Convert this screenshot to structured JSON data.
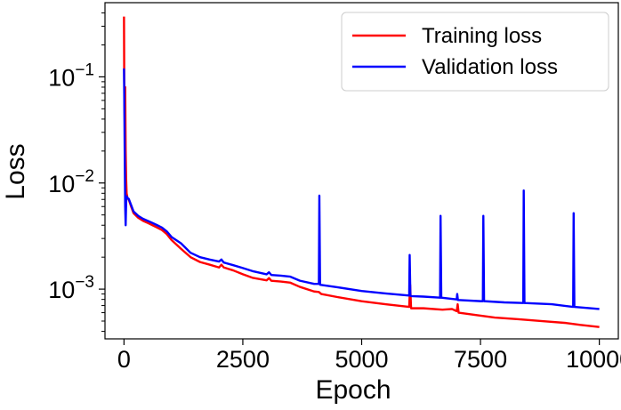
{
  "chart_data": {
    "type": "line",
    "title": "",
    "xlabel": "Epoch",
    "ylabel": "Loss",
    "xscale": "linear",
    "yscale": "log",
    "xlim": [
      -400,
      10400
    ],
    "ylim": [
      0.00034,
      0.5
    ],
    "grid": false,
    "legend_position": "top-right",
    "x_ticks": [
      0,
      2500,
      5000,
      7500,
      10000
    ],
    "x_tick_labels": [
      "0",
      "2500",
      "5000",
      "7500",
      "10000"
    ],
    "y_ticks": [
      {
        "value": 0.1,
        "base": "10",
        "exp": "−1"
      },
      {
        "value": 0.01,
        "base": "10",
        "exp": "−2"
      },
      {
        "value": 0.001,
        "base": "10",
        "exp": "−3"
      }
    ],
    "series": [
      {
        "name": "Training loss",
        "color": "#ff0000",
        "x": [
          0,
          5,
          15,
          25,
          35,
          45,
          55,
          75,
          100,
          150,
          200,
          300,
          400,
          500,
          600,
          700,
          800,
          900,
          1000,
          1200,
          1400,
          1600,
          1800,
          2000,
          2050,
          2100,
          2300,
          2500,
          2700,
          3000,
          3050,
          3100,
          3300,
          3500,
          3700,
          4000,
          4100,
          4150,
          4500,
          5000,
          5500,
          6000,
          6020,
          6040,
          6300,
          6700,
          6900,
          7000,
          7020,
          7040,
          7400,
          7800,
          8300,
          8800,
          9300,
          9600,
          10000
        ],
        "values": [
          0.37,
          0.09,
          0.04,
          0.08,
          0.02,
          0.011,
          0.008,
          0.0072,
          0.007,
          0.006,
          0.0052,
          0.0047,
          0.0044,
          0.0042,
          0.004,
          0.0038,
          0.0036,
          0.0033,
          0.0029,
          0.0024,
          0.002,
          0.0018,
          0.0017,
          0.0016,
          0.0017,
          0.0016,
          0.0015,
          0.00138,
          0.00128,
          0.00121,
          0.00127,
          0.0012,
          0.00118,
          0.00115,
          0.00105,
          0.00095,
          0.00094,
          0.0009,
          0.00084,
          0.00077,
          0.00072,
          0.00068,
          0.0011,
          0.00066,
          0.00066,
          0.00064,
          0.00065,
          0.00062,
          0.00072,
          0.0006,
          0.00057,
          0.00054,
          0.00052,
          0.0005,
          0.00048,
          0.00046,
          0.00044
        ]
      },
      {
        "name": "Validation loss",
        "color": "#0000ff",
        "x": [
          0,
          5,
          15,
          25,
          35,
          45,
          55,
          75,
          100,
          150,
          200,
          300,
          400,
          500,
          600,
          700,
          800,
          900,
          1000,
          1200,
          1400,
          1600,
          1800,
          2000,
          2050,
          2100,
          2300,
          2500,
          2700,
          3000,
          3050,
          3100,
          3300,
          3500,
          3700,
          4000,
          4100,
          4110,
          4125,
          4500,
          5000,
          5500,
          6000,
          6010,
          6025,
          6040,
          6300,
          6650,
          6660,
          6675,
          6900,
          7000,
          7010,
          7025,
          7500,
          7550,
          7560,
          7575,
          8000,
          8400,
          8410,
          8425,
          9000,
          9450,
          9460,
          9475,
          10000
        ],
        "values": [
          0.12,
          0.07,
          0.02,
          0.006,
          0.004,
          0.0065,
          0.0075,
          0.0072,
          0.0071,
          0.0062,
          0.0054,
          0.0049,
          0.0046,
          0.0044,
          0.0042,
          0.004,
          0.0038,
          0.0035,
          0.0031,
          0.0027,
          0.0022,
          0.002,
          0.0019,
          0.00182,
          0.0019,
          0.00178,
          0.00168,
          0.00158,
          0.00148,
          0.00138,
          0.00144,
          0.00136,
          0.00134,
          0.00131,
          0.0012,
          0.00112,
          0.00112,
          0.0076,
          0.0011,
          0.00104,
          0.00096,
          0.00091,
          0.00087,
          0.0021,
          0.00087,
          0.00086,
          0.00085,
          0.00083,
          0.0049,
          0.00083,
          0.00081,
          0.0008,
          0.0009,
          0.00079,
          0.00077,
          0.00077,
          0.0049,
          0.00077,
          0.00075,
          0.00074,
          0.0085,
          0.00074,
          0.00072,
          0.00068,
          0.0052,
          0.00068,
          0.00065
        ]
      }
    ]
  }
}
